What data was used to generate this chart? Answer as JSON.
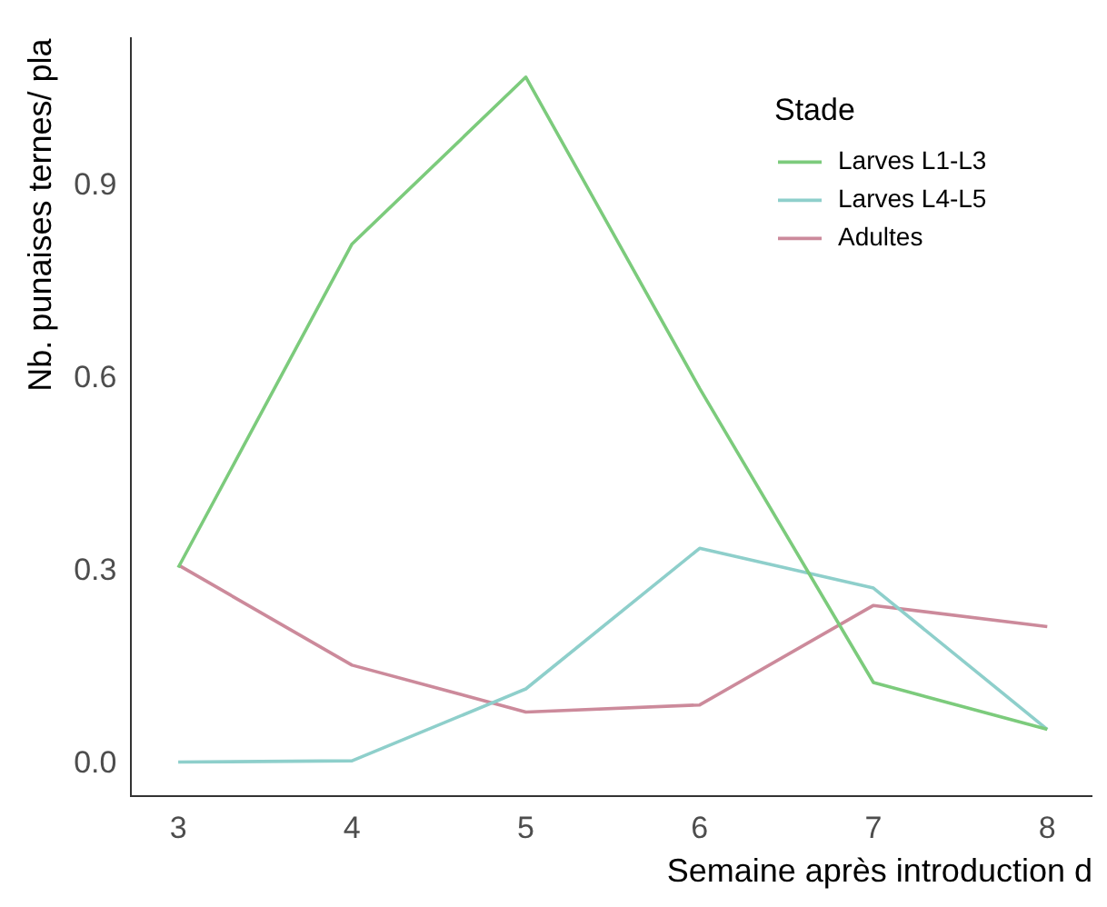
{
  "chart_data": {
    "type": "line",
    "xlabel": "Semaine après introduction d",
    "ylabel": "Nb. punaises ternes/ pla",
    "legend_title": "Stade",
    "legend": "top right",
    "grid": false,
    "marker": "none",
    "line_style": "solid",
    "x": [
      3,
      4,
      5,
      6,
      7,
      8
    ],
    "xlim": [
      2.73,
      8.26
    ],
    "xticks": [
      3,
      4,
      5,
      6,
      7,
      8
    ],
    "ylim": [
      -0.05,
      1.13
    ],
    "yticks": [
      {
        "value": 0,
        "label": "0.0"
      },
      0.3,
      0.6,
      0.9
    ],
    "series": [
      {
        "name": "Larves L1-L3",
        "color": "#7ccb7c",
        "values": [
          0.306,
          0.81,
          1.07,
          0.585,
          0.127,
          0.054
        ]
      },
      {
        "name": "Larves L4-L5",
        "color": "#8ecfcb",
        "values": [
          0.003,
          0.005,
          0.117,
          0.336,
          0.274,
          0.054
        ]
      },
      {
        "name": "Adultes",
        "color": "#cc8a9b",
        "values": [
          0.31,
          0.154,
          0.081,
          0.092,
          0.247,
          0.214
        ]
      }
    ]
  }
}
